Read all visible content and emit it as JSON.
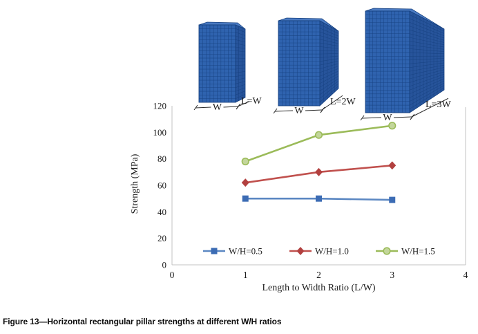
{
  "figure": {
    "caption": "Figure 13—Horizontal rectangular pillar strengths at different W/H ratios"
  },
  "pillars": [
    {
      "width_label": "W",
      "length_label": "L=W"
    },
    {
      "width_label": "W",
      "length_label": "L=2W"
    },
    {
      "width_label": "W",
      "length_label": "L=3W"
    }
  ],
  "pillar_colors": {
    "front": "#2f63af",
    "side": "#27549b",
    "top": "#4a7ac2",
    "grid_line": "#16407f",
    "edge": "#16407f",
    "dim_line": "#2a2a2a"
  },
  "chart_data": {
    "type": "line",
    "title": "",
    "xlabel": "Length to Width Ratio (L/W)",
    "ylabel": "Strength (MPa)",
    "x": [
      1,
      2,
      3
    ],
    "xlim": [
      0,
      4
    ],
    "ylim": [
      0,
      120
    ],
    "x_ticks": [
      "0",
      "1",
      "2",
      "3",
      "4"
    ],
    "y_ticks": [
      "0",
      "20",
      "40",
      "60",
      "80",
      "100",
      "120"
    ],
    "grid": false,
    "legend_position": "bottom-inside",
    "axis_color": "#c3c3c3",
    "series": [
      {
        "name": "W/H=0.5",
        "marker": "square",
        "line_color": "#5b87c2",
        "marker_color": "#3c6cb4",
        "marker_stroke": "#3c6cb4",
        "values": [
          50,
          50,
          49
        ]
      },
      {
        "name": "W/H=1.0",
        "marker": "diamond",
        "line_color": "#c0504d",
        "marker_color": "#b2403f",
        "marker_stroke": "#b2403f",
        "values": [
          62,
          70,
          75
        ]
      },
      {
        "name": "W/H=1.5",
        "marker": "circle",
        "line_color": "#9bbb59",
        "marker_color": "#c3d69b",
        "marker_stroke": "#9bbb59",
        "values": [
          78,
          98,
          105
        ]
      }
    ]
  }
}
